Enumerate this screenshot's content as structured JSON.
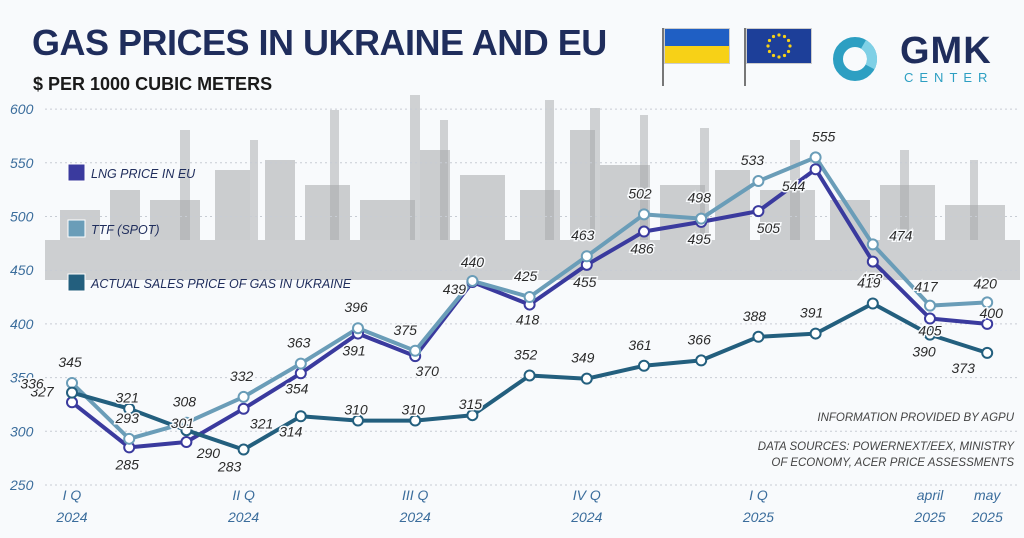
{
  "header": {
    "title": "GAS PRICES IN UKRAINE AND EU",
    "subtitle": "$ PER 1000 CUBIC METERS"
  },
  "logo": {
    "name": "GMK",
    "sub": "CENTER"
  },
  "footnotes": {
    "info": "INFORMATION PROVIDED BY AGPU",
    "sources_line1": "DATA SOURCES: POWERNEXT/EEX, MINISTRY",
    "sources_line2": "OF ECONOMY, ACER PRICE ASSESSMENTS"
  },
  "colors": {
    "lng": "#3a3a9e",
    "ttf": "#6a9db8",
    "ukraine": "#235f7e",
    "ua_blue": "#1f5fc4",
    "ua_yellow": "#f7d117",
    "eu_blue": "#1d3f99",
    "title": "#1f2d5c",
    "axis_text": "#3b6d9c"
  },
  "chart_data": {
    "type": "line",
    "title": "GAS PRICES IN UKRAINE AND EU",
    "subtitle": "$ PER 1000 CUBIC METERS",
    "ylim": [
      250,
      600
    ],
    "y_ticks": [
      250,
      300,
      350,
      400,
      450,
      500,
      550,
      600
    ],
    "grid": true,
    "legend_position": "left",
    "x_tick_labels": [
      {
        "line1": "I Q",
        "line2": "2024",
        "index": 0
      },
      {
        "line1": "II Q",
        "line2": "2024",
        "index": 3
      },
      {
        "line1": "III Q",
        "line2": "2024",
        "index": 6
      },
      {
        "line1": "IV Q",
        "line2": "2024",
        "index": 9
      },
      {
        "line1": "I Q",
        "line2": "2025",
        "index": 12
      },
      {
        "line1": "april",
        "line2": "2025",
        "index": 15
      },
      {
        "line1": "may",
        "line2": "2025",
        "index": 16
      }
    ],
    "series": [
      {
        "name": "LNG PRICE IN EU",
        "x": [
          0,
          1,
          2,
          3,
          4,
          5,
          6,
          7,
          8,
          9,
          10,
          11,
          12,
          13,
          14,
          15,
          16
        ],
        "values": [
          327,
          285,
          290,
          321,
          354,
          391,
          370,
          439,
          418,
          455,
          486,
          495,
          505,
          544,
          458,
          405,
          400
        ]
      },
      {
        "name": "TTF (SPOT)",
        "x": [
          0,
          1,
          2,
          3,
          4,
          5,
          6,
          7,
          8,
          9,
          10,
          11,
          12,
          13,
          14,
          15,
          16
        ],
        "values": [
          345,
          293,
          308,
          332,
          363,
          396,
          375,
          440,
          425,
          463,
          502,
          498,
          533,
          555,
          474,
          417,
          420
        ]
      },
      {
        "name": "ACTUAL SALES PRICE OF GAS IN UKRAINE",
        "x": [
          0,
          1,
          2,
          3,
          4,
          5,
          6,
          7,
          8,
          9,
          10,
          11,
          12,
          13,
          14,
          15,
          16
        ],
        "values": [
          336,
          321,
          301,
          283,
          314,
          310,
          310,
          315,
          352,
          349,
          361,
          366,
          388,
          391,
          419,
          390,
          373
        ]
      }
    ]
  }
}
